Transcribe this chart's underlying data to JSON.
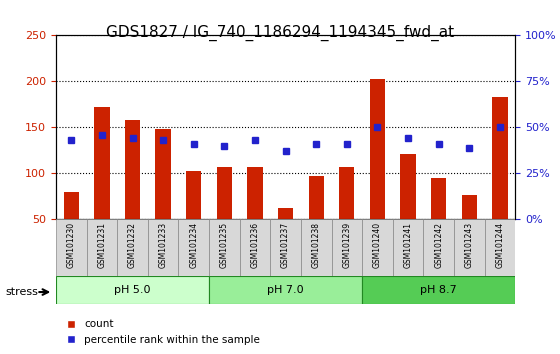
{
  "title": "GDS1827 / IG_740_1186294_1194345_fwd_at",
  "samples": [
    "GSM101230",
    "GSM101231",
    "GSM101232",
    "GSM101233",
    "GSM101234",
    "GSM101235",
    "GSM101236",
    "GSM101237",
    "GSM101238",
    "GSM101239",
    "GSM101240",
    "GSM101241",
    "GSM101242",
    "GSM101243",
    "GSM101244"
  ],
  "counts": [
    80,
    172,
    158,
    148,
    103,
    107,
    107,
    62,
    97,
    107,
    203,
    121,
    95,
    77,
    183
  ],
  "percentiles": [
    43,
    46,
    44,
    43,
    41,
    40,
    43,
    37,
    41,
    41,
    50,
    44,
    41,
    39,
    50
  ],
  "groups": [
    {
      "label": "pH 5.0",
      "start": 0,
      "end": 5,
      "color": "#ccffcc"
    },
    {
      "label": "pH 7.0",
      "start": 5,
      "end": 10,
      "color": "#99ee99"
    },
    {
      "label": "pH 8.7",
      "start": 10,
      "end": 15,
      "color": "#55cc55"
    }
  ],
  "ylim_left": [
    50,
    250
  ],
  "ylim_right": [
    0,
    100
  ],
  "yticks_left": [
    50,
    100,
    150,
    200,
    250
  ],
  "yticks_right": [
    0,
    25,
    50,
    75,
    100
  ],
  "bar_color": "#cc2200",
  "dot_color": "#2222cc",
  "background_color": "#d8d8d8",
  "stress_label": "stress",
  "legend_count": "count",
  "legend_pct": "percentile rank within the sample",
  "title_fontsize": 11,
  "axis_label_color_left": "#cc2200",
  "axis_label_color_right": "#2222cc"
}
